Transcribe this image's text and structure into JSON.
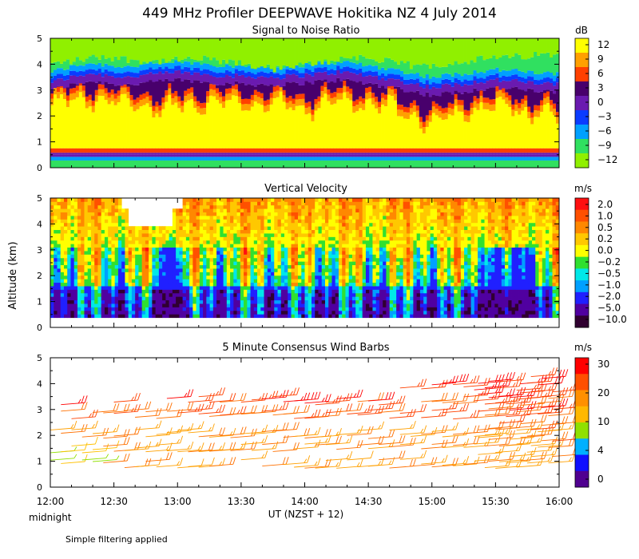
{
  "title": "449 MHz Profiler DEEPWAVE Hokitika NZ  4 July 2014",
  "ylabel": "Altitude (km)",
  "xlabel": "UT  (NZST + 12)",
  "midnight_label": "midnight",
  "footnote": "Simple filtering applied",
  "chart_data": [
    {
      "type": "heatmap",
      "title": "Signal to Noise Ratio",
      "unit": "dB",
      "x_range": [
        12.0,
        16.0
      ],
      "ylim": [
        0,
        5
      ],
      "yticks": [
        0,
        1,
        2,
        3,
        4,
        5
      ],
      "xtick_labels": [
        "12:00",
        "12:30",
        "13:00",
        "13:30",
        "14:00",
        "14:30",
        "15:00",
        "15:30",
        "16:00"
      ],
      "colorbar": {
        "labels": [
          "12",
          "9",
          "6",
          "3",
          "0",
          "−3",
          "−6",
          "−9",
          "−12"
        ],
        "colors": [
          "#ffff00",
          "#ffa000",
          "#ff4000",
          "#48006c",
          "#6a1ab0",
          "#0a3cff",
          "#00a0ff",
          "#30e060",
          "#90f000"
        ]
      },
      "profile_knots": {
        "gap_top": [
          [
            12,
            0.58
          ],
          [
            16,
            0.58
          ]
        ],
        "strong_top": [
          [
            12.0,
            2.6
          ],
          [
            12.3,
            2.9
          ],
          [
            12.6,
            2.7
          ],
          [
            12.9,
            2.5
          ],
          [
            13.2,
            2.8
          ],
          [
            13.6,
            2.7
          ],
          [
            14.0,
            2.5
          ],
          [
            14.3,
            2.85
          ],
          [
            14.7,
            2.5
          ],
          [
            15.0,
            2.0
          ],
          [
            15.3,
            2.5
          ],
          [
            15.6,
            2.6
          ],
          [
            16.0,
            2.2
          ]
        ],
        "weak_top": [
          [
            12.0,
            3.3
          ],
          [
            12.3,
            3.65
          ],
          [
            12.6,
            3.5
          ],
          [
            13.0,
            3.7
          ],
          [
            13.4,
            3.55
          ],
          [
            13.8,
            3.5
          ],
          [
            14.3,
            3.7
          ],
          [
            14.7,
            3.4
          ],
          [
            15.0,
            3.1
          ],
          [
            15.5,
            3.4
          ],
          [
            16.0,
            3.2
          ]
        ],
        "noise_top": [
          [
            12.0,
            4.0
          ],
          [
            12.4,
            4.3
          ],
          [
            12.8,
            4.1
          ],
          [
            13.2,
            4.2
          ],
          [
            13.8,
            3.8
          ],
          [
            14.4,
            4.3
          ],
          [
            14.9,
            3.9
          ],
          [
            15.4,
            4.2
          ],
          [
            16.0,
            4.4
          ]
        ]
      }
    },
    {
      "type": "heatmap",
      "title": "Vertical Velocity",
      "unit": "m/s",
      "x_range": [
        12.0,
        16.0
      ],
      "ylim": [
        0,
        5
      ],
      "yticks": [
        0,
        1,
        2,
        3,
        4,
        5
      ],
      "xtick_labels": [
        "12:00",
        "12:30",
        "13:00",
        "13:30",
        "14:00",
        "14:30",
        "15:00",
        "15:30",
        "16:00"
      ],
      "colorbar": {
        "labels": [
          "2.0",
          "1.0",
          "0.5",
          "0.2",
          "0.0",
          "−0.2",
          "−0.5",
          "−1.0",
          "−2.0",
          "−5.0",
          "−10.0"
        ],
        "colors": [
          "#ff1010",
          "#ff5000",
          "#ff8800",
          "#ffc800",
          "#ffff00",
          "#30e030",
          "#00e8e8",
          "#00a0ff",
          "#2020ff",
          "#5000a0",
          "#300030"
        ]
      },
      "data_bottom_km": 0.38,
      "data_top_km": 5.0
    },
    {
      "type": "wind_barbs",
      "title": "5 Minute Consensus Wind Barbs",
      "unit": "m/s",
      "x_range": [
        12.0,
        16.0
      ],
      "ylim": [
        0,
        5
      ],
      "yticks": [
        0,
        1,
        2,
        3,
        4,
        5
      ],
      "xtick_labels": [
        "12:00",
        "12:30",
        "13:00",
        "13:30",
        "14:00",
        "14:30",
        "15:00",
        "15:30",
        "16:00"
      ],
      "colorbar": {
        "labels": [
          "30",
          "20",
          "10",
          "4",
          "0"
        ],
        "colors": [
          "#ff0000",
          "#ff5000",
          "#ff9000",
          "#ffb800",
          "#90e000",
          "#00b0ff",
          "#1010ff",
          "#500090"
        ]
      },
      "levels": [
        {
          "altitude_km": 0.9,
          "speed_ms": 18
        },
        {
          "altitude_km": 1.5,
          "speed_ms": 20
        },
        {
          "altitude_km": 2.05,
          "speed_ms": 20
        },
        {
          "altitude_km": 2.8,
          "speed_ms": 24
        },
        {
          "altitude_km": 3.35,
          "speed_ms": 27
        },
        {
          "altitude_km": 3.9,
          "speed_ms": 28
        }
      ]
    }
  ]
}
